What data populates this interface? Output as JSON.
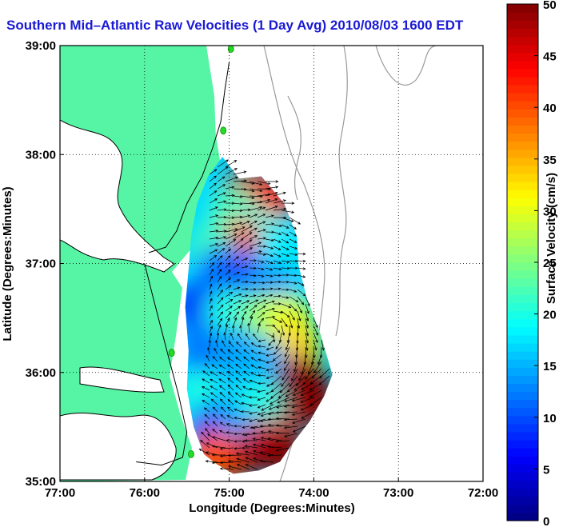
{
  "title": "Southern Mid–Atlantic Raw Velocities (1 Day Avg) 2010/08/03 1600 EDT",
  "colors": {
    "land": "#55f5a5",
    "coast_line": "#000000",
    "depth_contour": "#9a9a9a",
    "station_marker": "#22dd22",
    "title_color": "#1a1ad6",
    "grid": "#000000"
  },
  "chart_data": {
    "type": "heatmap",
    "title": "Southern Mid–Atlantic Raw Velocities (1 Day Avg) 2010/08/03 1600 EDT",
    "xlabel": "Longitude (Degrees:Minutes)",
    "ylabel": "Latitude (Degrees:Minutes)",
    "colorbar_label": "Surface Velocity (cm/s)",
    "xlim": [
      -77,
      -72
    ],
    "ylim": [
      35,
      39
    ],
    "clim": [
      0,
      50
    ],
    "x_ticks": [
      {
        "value": -77,
        "label": "77:00"
      },
      {
        "value": -76,
        "label": "76:00"
      },
      {
        "value": -75,
        "label": "75:00"
      },
      {
        "value": -74,
        "label": "74:00"
      },
      {
        "value": -73,
        "label": "73:00"
      },
      {
        "value": -72,
        "label": "72:00"
      }
    ],
    "y_ticks": [
      {
        "value": 35,
        "label": "35:00"
      },
      {
        "value": 36,
        "label": "36:00"
      },
      {
        "value": 37,
        "label": "37:00"
      },
      {
        "value": 38,
        "label": "38:00"
      },
      {
        "value": 39,
        "label": "39:00"
      }
    ],
    "colorbar_ticks": [
      {
        "value": 0,
        "label": "0"
      },
      {
        "value": 5,
        "label": "5"
      },
      {
        "value": 10,
        "label": "10"
      },
      {
        "value": 15,
        "label": "15"
      },
      {
        "value": 20,
        "label": "20"
      },
      {
        "value": 25,
        "label": "25"
      },
      {
        "value": 30,
        "label": "30"
      },
      {
        "value": 35,
        "label": "35"
      },
      {
        "value": 40,
        "label": "40"
      },
      {
        "value": 45,
        "label": "45"
      },
      {
        "value": 50,
        "label": "50"
      }
    ],
    "grid": true,
    "grid_style": "dotted",
    "colormap": "jet",
    "coverage_outline": [
      [
        -75.08,
        37.98
      ],
      [
        -74.88,
        37.78
      ],
      [
        -74.62,
        37.8
      ],
      [
        -74.35,
        37.55
      ],
      [
        -74.2,
        37.25
      ],
      [
        -74.18,
        36.98
      ],
      [
        -74.08,
        36.68
      ],
      [
        -73.92,
        36.35
      ],
      [
        -73.78,
        35.98
      ],
      [
        -73.88,
        35.78
      ],
      [
        -74.05,
        35.55
      ],
      [
        -74.25,
        35.35
      ],
      [
        -74.4,
        35.18
      ],
      [
        -74.65,
        35.1
      ],
      [
        -74.95,
        35.07
      ],
      [
        -75.15,
        35.16
      ],
      [
        -75.3,
        35.25
      ],
      [
        -75.42,
        35.5
      ],
      [
        -75.5,
        35.85
      ],
      [
        -75.48,
        36.2
      ],
      [
        -75.52,
        36.6
      ],
      [
        -75.48,
        36.95
      ],
      [
        -75.45,
        37.25
      ],
      [
        -75.38,
        37.55
      ],
      [
        -75.25,
        37.8
      ]
    ],
    "speed_field": [
      {
        "lon": -74.8,
        "lat": 37.65,
        "speed": 46
      },
      {
        "lon": -74.5,
        "lat": 37.6,
        "speed": 44
      },
      {
        "lon": -74.95,
        "lat": 37.48,
        "speed": 22
      },
      {
        "lon": -74.7,
        "lat": 37.3,
        "speed": 20
      },
      {
        "lon": -74.9,
        "lat": 37.2,
        "speed": 42
      },
      {
        "lon": -75.2,
        "lat": 37.15,
        "speed": 22
      },
      {
        "lon": -74.4,
        "lat": 37.1,
        "speed": 18
      },
      {
        "lon": -75.1,
        "lat": 36.95,
        "speed": 12
      },
      {
        "lon": -74.85,
        "lat": 36.9,
        "speed": 10
      },
      {
        "lon": -74.5,
        "lat": 36.8,
        "speed": 14
      },
      {
        "lon": -75.35,
        "lat": 36.6,
        "speed": 6
      },
      {
        "lon": -75.0,
        "lat": 36.55,
        "speed": 20
      },
      {
        "lon": -74.6,
        "lat": 36.5,
        "speed": 26
      },
      {
        "lon": -74.3,
        "lat": 36.5,
        "speed": 30
      },
      {
        "lon": -74.2,
        "lat": 36.25,
        "speed": 33
      },
      {
        "lon": -75.3,
        "lat": 36.2,
        "speed": 12
      },
      {
        "lon": -74.9,
        "lat": 36.2,
        "speed": 14
      },
      {
        "lon": -74.6,
        "lat": 36.1,
        "speed": 15
      },
      {
        "lon": -74.15,
        "lat": 35.95,
        "speed": 49
      },
      {
        "lon": -74.0,
        "lat": 35.75,
        "speed": 50
      },
      {
        "lon": -74.35,
        "lat": 35.6,
        "speed": 48
      },
      {
        "lon": -75.3,
        "lat": 35.8,
        "speed": 20
      },
      {
        "lon": -74.9,
        "lat": 35.8,
        "speed": 16
      },
      {
        "lon": -74.65,
        "lat": 35.7,
        "speed": 20
      },
      {
        "lon": -75.2,
        "lat": 35.5,
        "speed": 10
      },
      {
        "lon": -74.85,
        "lat": 35.45,
        "speed": 14
      },
      {
        "lon": -74.55,
        "lat": 35.35,
        "speed": 45
      },
      {
        "lon": -74.95,
        "lat": 35.2,
        "speed": 48
      },
      {
        "lon": -75.2,
        "lat": 35.25,
        "speed": 40
      },
      {
        "lon": -74.4,
        "lat": 35.25,
        "speed": 50
      }
    ],
    "stations": [
      {
        "lon": -74.98,
        "lat": 38.97
      },
      {
        "lon": -75.07,
        "lat": 38.22
      },
      {
        "lon": -75.68,
        "lat": 36.18
      },
      {
        "lon": -75.45,
        "lat": 35.25
      }
    ]
  },
  "map_outline": {
    "delmarva_coast": [
      [
        -75.0,
        38.85
      ],
      [
        -75.05,
        38.6
      ],
      [
        -75.1,
        38.3
      ],
      [
        -75.2,
        38.05
      ],
      [
        -75.32,
        37.8
      ],
      [
        -75.5,
        37.55
      ],
      [
        -75.62,
        37.3
      ],
      [
        -75.75,
        37.15
      ],
      [
        -75.95,
        37.1
      ]
    ],
    "lower_coast": [
      [
        -76.0,
        37.0
      ],
      [
        -75.92,
        36.75
      ],
      [
        -75.82,
        36.45
      ],
      [
        -75.72,
        36.15
      ],
      [
        -75.6,
        35.8
      ],
      [
        -75.5,
        35.45
      ],
      [
        -75.55,
        35.22
      ],
      [
        -75.8,
        35.15
      ],
      [
        -76.1,
        35.18
      ]
    ]
  }
}
